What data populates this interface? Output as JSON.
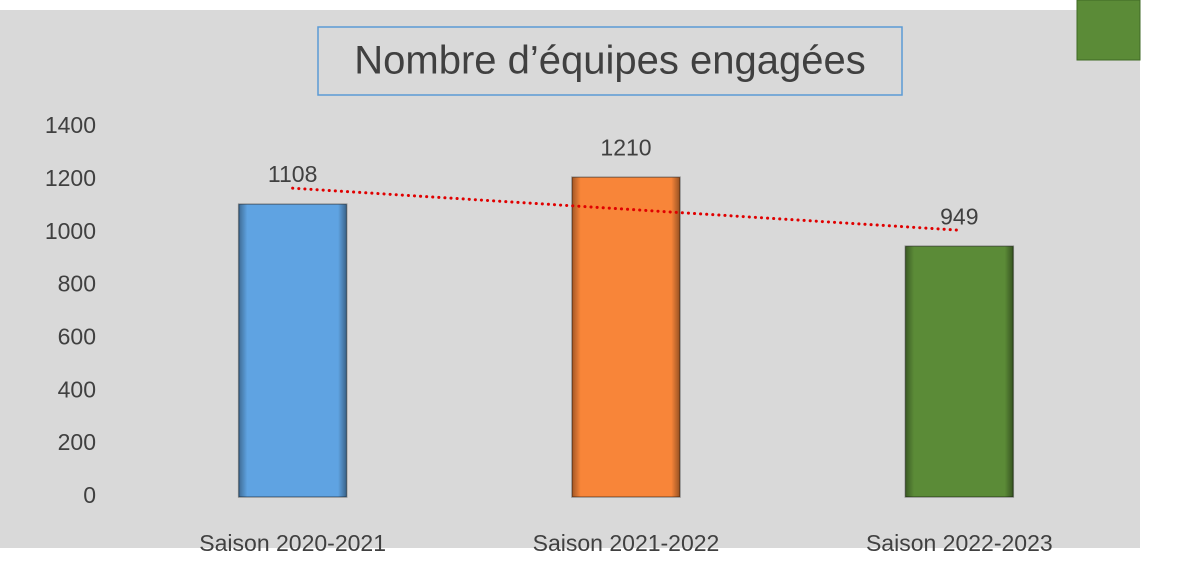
{
  "chart_data": {
    "type": "bar",
    "title": "Nombre d’équipes engagées",
    "categories": [
      "Saison 2020-2021",
      "Saison 2021-2022",
      "Saison 2022-2023"
    ],
    "values": [
      1108,
      1210,
      949
    ],
    "colors": [
      "#5fa3e2",
      "#f88539",
      "#5b8b37"
    ],
    "ylim": [
      0,
      1400
    ],
    "yticks": [
      0,
      200,
      400,
      600,
      800,
      1000,
      1200,
      1400
    ],
    "grid": false,
    "trendline": {
      "type": "linear",
      "color": "#e00000",
      "style": "dotted"
    }
  }
}
